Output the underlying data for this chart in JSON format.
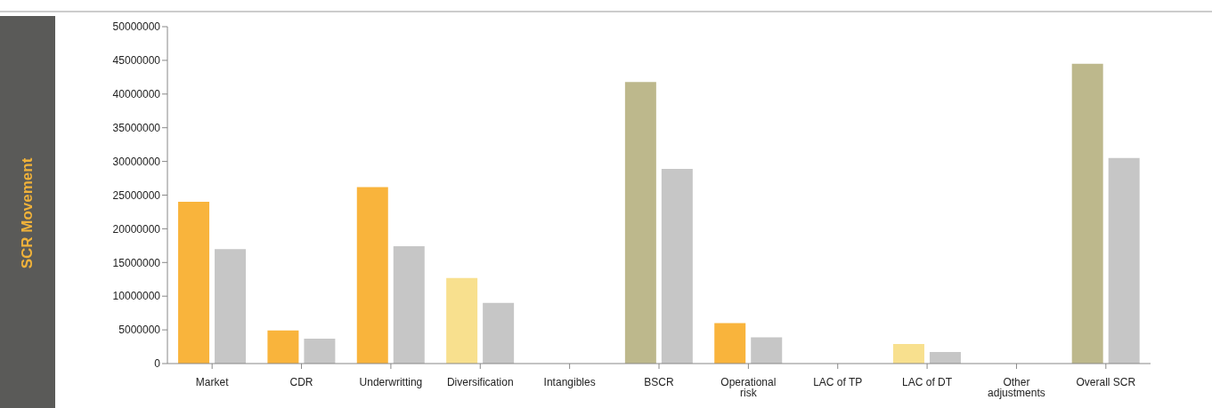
{
  "chart_data": {
    "type": "bar",
    "annotations": [
      "SCR Movement"
    ],
    "categories": [
      "Market",
      "CDR",
      "Underwritting",
      "Diversification",
      "Intangibles",
      "BSCR",
      "Operational risk",
      "LAC of TP",
      "LAC of DT",
      "Other adjustments",
      "Overall SCR"
    ],
    "series": [
      {
        "colors": [
          "#f9b43c",
          "#f9b43c",
          "#f9b43c",
          "#f8e08e",
          "#f9b43c",
          "#bdb88c",
          "#f9b43c",
          "#f9b43c",
          "#f8e08e",
          "#f9b43c",
          "#bdb88c"
        ],
        "values": [
          24000000,
          4900000,
          26200000,
          12700000,
          0,
          41800000,
          6000000,
          0,
          2900000,
          0,
          44500000
        ]
      },
      {
        "color": "#c6c6c6",
        "values": [
          17000000,
          3700000,
          17400000,
          9000000,
          0,
          28900000,
          3900000,
          0,
          1700000,
          0,
          30500000
        ]
      }
    ],
    "ylim": [
      0,
      50000000
    ],
    "yticks": [
      0,
      5000000,
      10000000,
      15000000,
      20000000,
      25000000,
      30000000,
      35000000,
      40000000,
      45000000,
      50000000
    ],
    "grid": false,
    "legend": false
  }
}
